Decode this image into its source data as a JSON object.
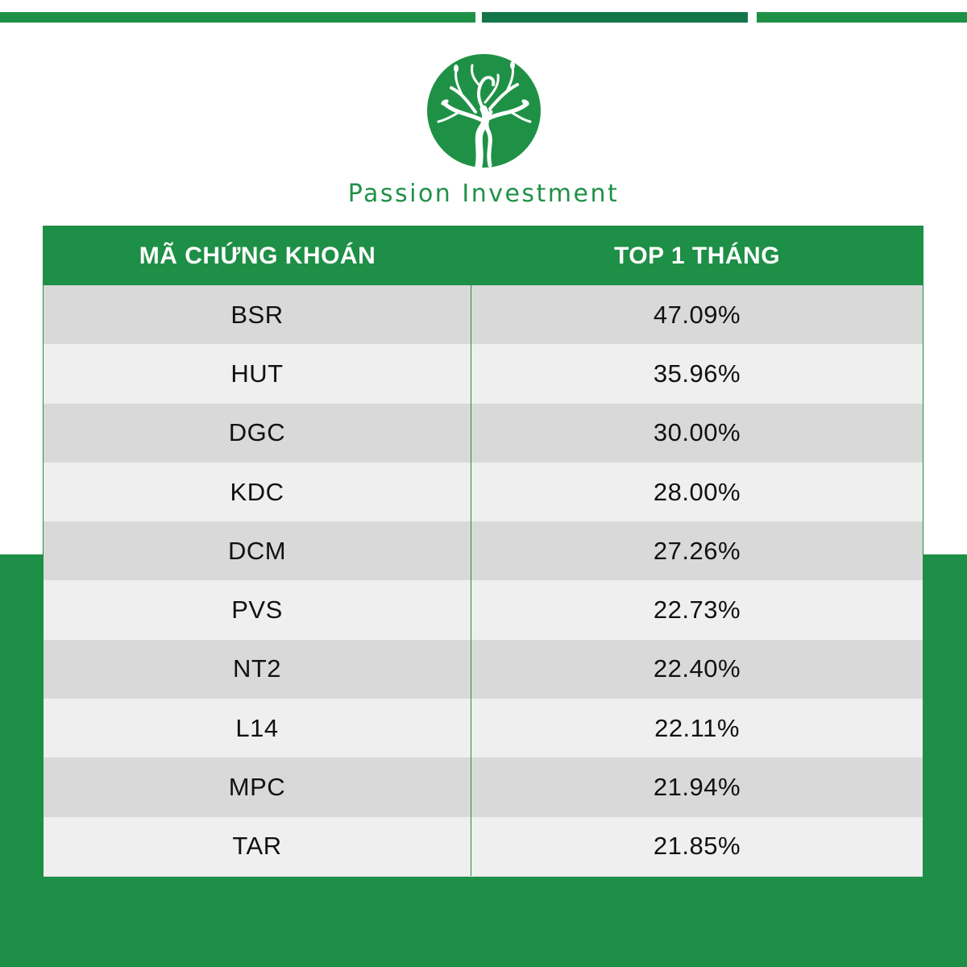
{
  "brand": {
    "name": "Passion Investment",
    "logo_icon": "tree-logo-icon",
    "colors": {
      "primary_green": "#1e8f46",
      "dark_green": "#137648",
      "row_dark": "#d9d9d9",
      "row_light": "#efefef"
    }
  },
  "table": {
    "headers": {
      "code": "MÃ CHỨNG KHOÁN",
      "top": "TOP 1 THÁNG"
    },
    "rows": [
      {
        "code": "BSR",
        "value": "47.09%"
      },
      {
        "code": "HUT",
        "value": "35.96%"
      },
      {
        "code": "DGC",
        "value": "30.00%"
      },
      {
        "code": "KDC",
        "value": "28.00%"
      },
      {
        "code": "DCM",
        "value": "27.26%"
      },
      {
        "code": "PVS",
        "value": "22.73%"
      },
      {
        "code": "NT2",
        "value": "22.40%"
      },
      {
        "code": "L14",
        "value": "22.11%"
      },
      {
        "code": "MPC",
        "value": "21.94%"
      },
      {
        "code": "TAR",
        "value": "21.85%"
      }
    ]
  }
}
